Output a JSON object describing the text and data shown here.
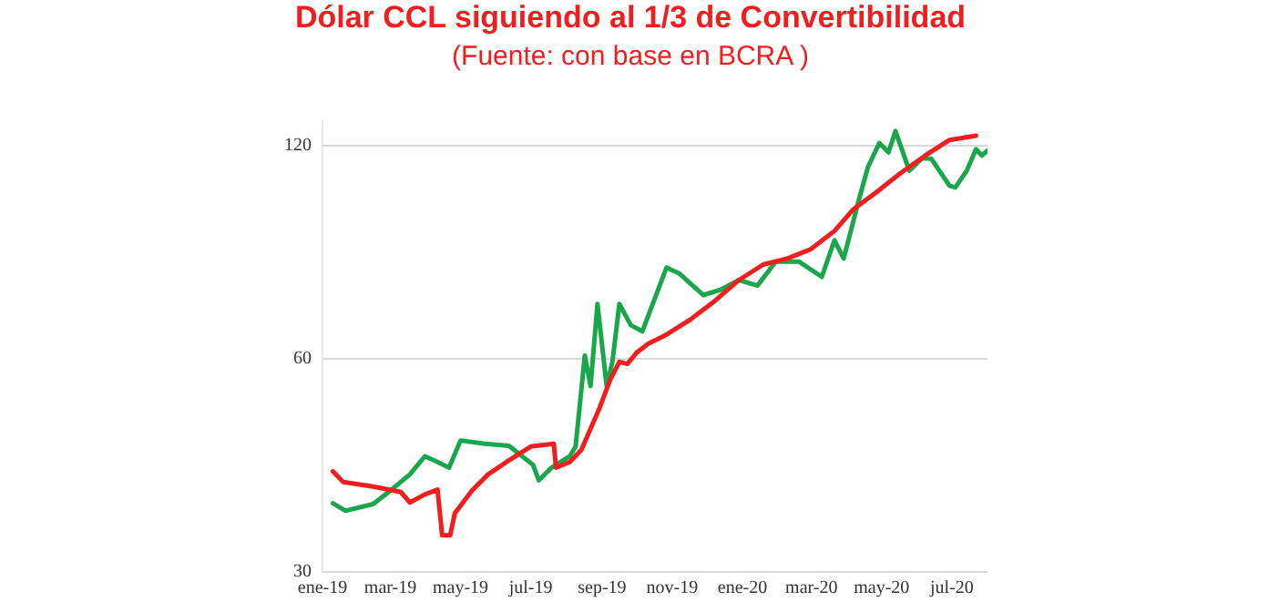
{
  "chart_data": {
    "type": "line",
    "title": "Dólar CCL siguiendo al 1/3 de Convertibilidad",
    "subtitle": "(Fuente: con base en BCRA )",
    "log": "y",
    "grid": "y",
    "legend": false,
    "xlim": [
      "2019-01",
      "2020-08"
    ],
    "xticks": [
      {
        "value": "2019-01",
        "label": "ene-19"
      },
      {
        "value": "2019-03",
        "label": "mar-19"
      },
      {
        "value": "2019-05",
        "label": "may-19"
      },
      {
        "value": "2019-07",
        "label": "jul-19"
      },
      {
        "value": "2019-09",
        "label": "sep-19"
      },
      {
        "value": "2019-11",
        "label": "nov-19"
      },
      {
        "value": "2020-01",
        "label": "ene-20"
      },
      {
        "value": "2020-03",
        "label": "mar-20"
      },
      {
        "value": "2020-05",
        "label": "may-20"
      },
      {
        "value": "2020-07",
        "label": "jul-20"
      }
    ],
    "ylim": [
      30,
      130
    ],
    "yticks": [
      30,
      60,
      120
    ],
    "series": [
      {
        "color": "#f01e1e",
        "x": [
          "2019-01-10",
          "2019-01-19",
          "2019-02-14",
          "2019-03-10",
          "2019-03-18",
          "2019-03-31",
          "2019-04-11",
          "2019-04-15",
          "2019-04-22",
          "2019-04-26",
          "2019-05-11",
          "2019-05-25",
          "2019-06-10",
          "2019-07-01",
          "2019-07-21",
          "2019-07-23",
          "2019-08-04",
          "2019-08-14",
          "2019-08-22",
          "2019-08-30",
          "2019-09-08",
          "2019-09-16",
          "2019-09-23",
          "2019-10-01",
          "2019-10-11",
          "2019-10-27",
          "2019-11-17",
          "2019-12-08",
          "2019-12-29",
          "2020-01-19",
          "2020-02-09",
          "2020-02-29",
          "2020-03-21",
          "2020-04-06",
          "2020-04-27",
          "2020-05-17",
          "2020-06-08",
          "2020-06-29",
          "2020-07-22"
        ],
        "values": [
          41.6,
          40.2,
          39.6,
          38.9,
          37.6,
          38.6,
          39.2,
          33.8,
          33.8,
          36.3,
          39.1,
          41.2,
          42.9,
          45.1,
          45.5,
          42.1,
          42.9,
          44.6,
          47.8,
          51.2,
          56,
          59.4,
          59,
          61.2,
          63,
          64.9,
          68.2,
          72.4,
          77.5,
          81.5,
          83.1,
          85.6,
          90.9,
          97.4,
          103.3,
          109.6,
          116.2,
          122.2,
          123.9
        ]
      },
      {
        "color": "#1aa64a",
        "x": [
          "2019-01-10",
          "2019-01-21",
          "2019-02-14",
          "2019-03-02",
          "2019-03-18",
          "2019-03-31",
          "2019-04-11",
          "2019-04-21",
          "2019-05-01",
          "2019-05-22",
          "2019-06-12",
          "2019-07-03",
          "2019-07-08",
          "2019-07-19",
          "2019-08-04",
          "2019-08-09",
          "2019-08-17",
          "2019-08-22",
          "2019-08-28",
          "2019-09-05",
          "2019-09-10",
          "2019-09-16",
          "2019-09-26",
          "2019-10-06",
          "2019-10-27",
          "2019-11-07",
          "2019-11-28",
          "2019-12-13",
          "2019-12-29",
          "2020-01-14",
          "2020-01-30",
          "2020-02-19",
          "2020-03-10",
          "2020-03-21",
          "2020-03-29",
          "2020-04-11",
          "2020-04-19",
          "2020-04-29",
          "2020-05-07",
          "2020-05-13",
          "2020-05-25",
          "2020-06-05",
          "2020-06-13",
          "2020-06-29",
          "2020-07-04",
          "2020-07-14",
          "2020-07-22",
          "2020-07-27",
          "2020-08-01"
        ],
        "values": [
          37.5,
          36.6,
          37.4,
          39.2,
          41.2,
          43.7,
          42.9,
          42.1,
          46,
          45.5,
          45.2,
          42.5,
          40.4,
          42.1,
          43.7,
          45.1,
          60.6,
          54.9,
          71.7,
          54.9,
          59.4,
          71.7,
          66.9,
          65.6,
          80.7,
          79.2,
          73.8,
          75.1,
          77.5,
          76.1,
          82.3,
          82.3,
          78.3,
          88.2,
          83.1,
          100.3,
          111.8,
          121,
          117.4,
          125.8,
          110.6,
          115.1,
          115,
          105.3,
          104.7,
          110.6,
          118.6,
          116.2,
          118
        ]
      }
    ]
  }
}
